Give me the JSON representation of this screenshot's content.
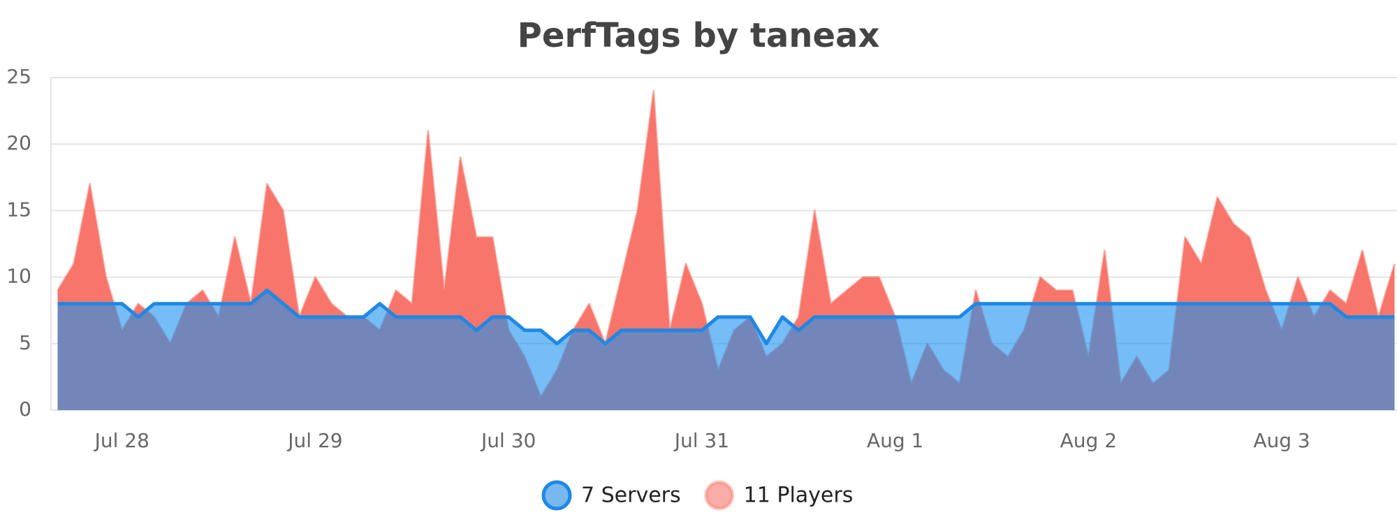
{
  "chart_data": {
    "type": "area",
    "title": "PerfTags by taneax",
    "categories": [
      null,
      null,
      null,
      null,
      "Jul 28",
      null,
      null,
      null,
      null,
      null,
      null,
      null,
      null,
      null,
      null,
      null,
      "Jul 29",
      null,
      null,
      null,
      null,
      null,
      null,
      null,
      null,
      null,
      null,
      null,
      "Jul 30",
      null,
      null,
      null,
      null,
      null,
      null,
      null,
      null,
      null,
      null,
      null,
      "Jul 31",
      null,
      null,
      null,
      null,
      null,
      null,
      null,
      null,
      null,
      null,
      null,
      "Aug 1",
      null,
      null,
      null,
      null,
      null,
      null,
      null,
      null,
      null,
      null,
      null,
      "Aug 2",
      null,
      null,
      null,
      null,
      null,
      null,
      null,
      null,
      null,
      null,
      null,
      "Aug 3",
      null,
      null,
      null,
      null,
      null,
      null,
      null
    ],
    "series": [
      {
        "name": "7 Servers",
        "color": "#1e88e5",
        "values": [
          8,
          8,
          8,
          8,
          8,
          7,
          8,
          8,
          8,
          8,
          8,
          8,
          8,
          9,
          8,
          7,
          7,
          7,
          7,
          7,
          8,
          7,
          7,
          7,
          7,
          7,
          6,
          7,
          7,
          6,
          6,
          5,
          6,
          6,
          5,
          6,
          6,
          6,
          6,
          6,
          6,
          7,
          7,
          7,
          5,
          7,
          6,
          7,
          7,
          7,
          7,
          7,
          7,
          7,
          7,
          7,
          7,
          8,
          8,
          8,
          8,
          8,
          8,
          8,
          8,
          8,
          8,
          8,
          8,
          8,
          8,
          8,
          8,
          8,
          8,
          8,
          8,
          8,
          8,
          8,
          7,
          7,
          7,
          7
        ]
      },
      {
        "name": "11 Players",
        "color": "#f7756a",
        "values": [
          9,
          11,
          17,
          10,
          6,
          8,
          7,
          5,
          8,
          9,
          7,
          13,
          8,
          17,
          15,
          7,
          10,
          8,
          7,
          7,
          6,
          9,
          8,
          21,
          9,
          19,
          13,
          13,
          6,
          4,
          1,
          3,
          6,
          8,
          5,
          10,
          15,
          24,
          6,
          11,
          8,
          3,
          6,
          7,
          4,
          5,
          7,
          15,
          8,
          9,
          10,
          10,
          7,
          2,
          5,
          3,
          2,
          9,
          5,
          4,
          6,
          10,
          9,
          9,
          4,
          12,
          2,
          4,
          2,
          3,
          13,
          11,
          16,
          14,
          13,
          9,
          6,
          10,
          7,
          9,
          8,
          12,
          7,
          11
        ]
      }
    ],
    "ylim": [
      0,
      25
    ],
    "yticks": [
      0,
      5,
      10,
      15,
      20,
      25
    ],
    "grid": true
  }
}
